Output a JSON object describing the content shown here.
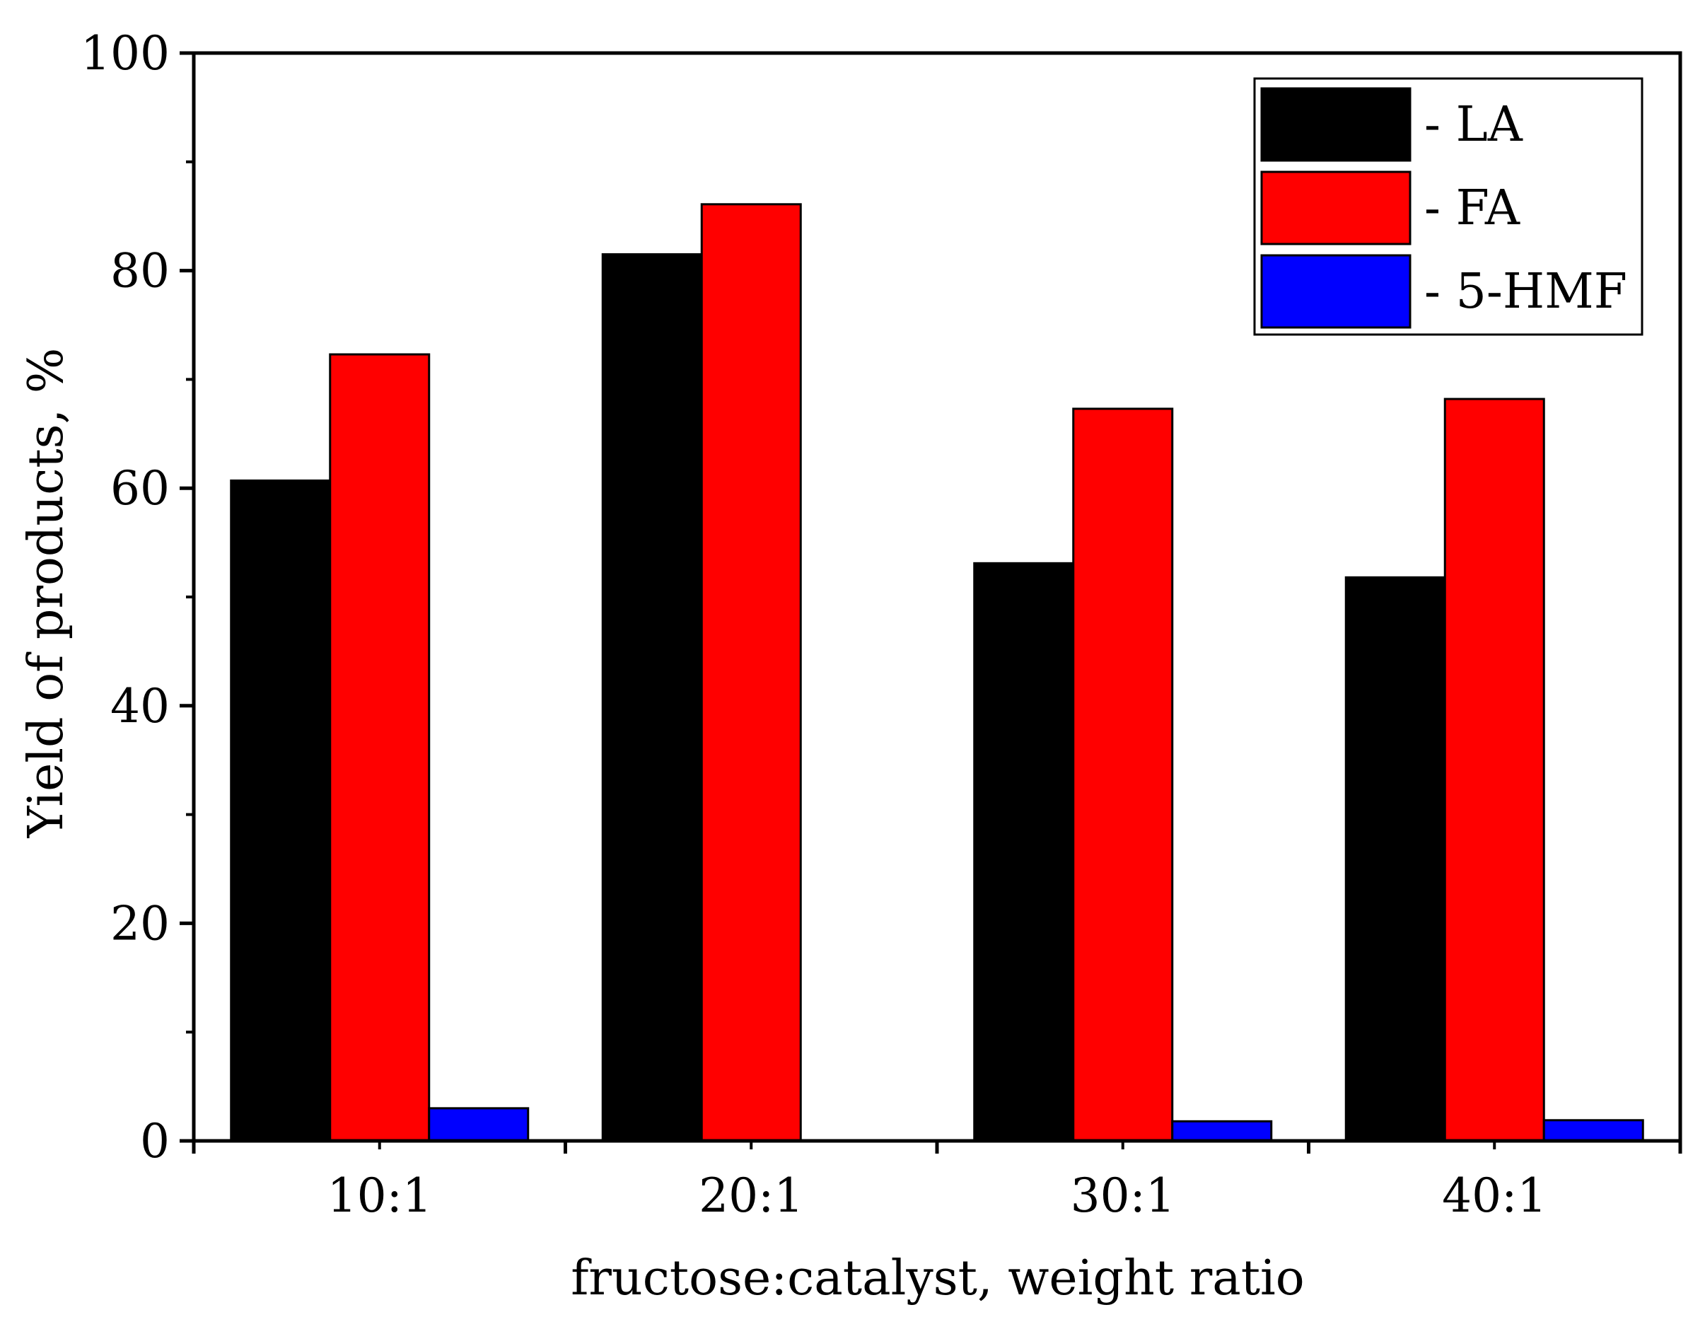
{
  "chart_data": {
    "type": "bar",
    "title": "",
    "xlabel": "fructose:catalyst, weight ratio",
    "ylabel": "Yield of products, %",
    "categories": [
      "10:1",
      "20:1",
      "30:1",
      "40:1"
    ],
    "ylim": [
      0,
      100
    ],
    "yticks": [
      0,
      20,
      40,
      60,
      80,
      100
    ],
    "yticks_minor": [
      10,
      30,
      50,
      70,
      90
    ],
    "ytick_labels": [
      "0",
      "20",
      "40",
      "60",
      "80",
      "100"
    ],
    "grid": false,
    "legend_position": "top-right",
    "series": [
      {
        "name": "LA",
        "legend_label": "- LA",
        "color": "#000000",
        "values": [
          60.7,
          81.5,
          53.1,
          51.8
        ]
      },
      {
        "name": "FA",
        "legend_label": "- FA",
        "color": "#ff0000",
        "values": [
          72.3,
          86.1,
          67.3,
          68.2
        ]
      },
      {
        "name": "5-HMF",
        "legend_label": "- 5-HMF",
        "color": "#0000ff",
        "values": [
          3.0,
          0,
          1.8,
          1.9
        ]
      }
    ]
  }
}
